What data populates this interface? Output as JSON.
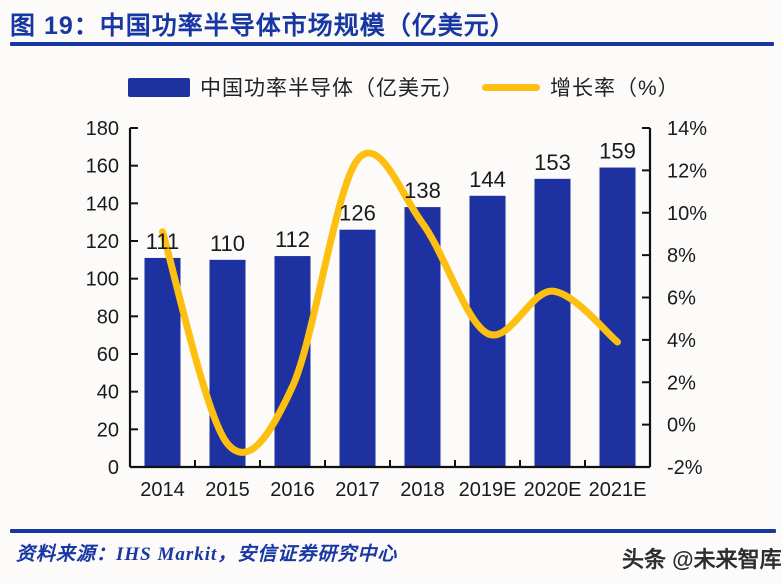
{
  "page": {
    "background": "#fcfbf9",
    "accent_color": "#1737a3"
  },
  "header": {
    "title": "图 19：中国功率半导体市场规模（亿美元）"
  },
  "legend": {
    "items": [
      {
        "label": "中国功率半导体（亿美元）",
        "swatch": "bar-swatch",
        "color": "#1d31a1"
      },
      {
        "label": "增长率（%）",
        "swatch": "line-swatch",
        "color": "#fdc011"
      }
    ]
  },
  "chart_data": {
    "type": "bar",
    "title": "中国功率半导体市场规模（亿美元）",
    "categories": [
      "2014",
      "2015",
      "2016",
      "2017",
      "2018",
      "2019E",
      "2020E",
      "2021E"
    ],
    "series": [
      {
        "name": "中国功率半导体（亿美元）",
        "type": "bar",
        "axis": "left",
        "color": "#1d31a1",
        "values": [
          111,
          110,
          112,
          126,
          138,
          144,
          153,
          159
        ],
        "data_labels": [
          "111",
          "110",
          "112",
          "126",
          "138",
          "144",
          "153",
          "159"
        ]
      },
      {
        "name": "增长率（%）",
        "type": "line",
        "axis": "right",
        "color": "#fdc011",
        "values": [
          9.1,
          -0.9,
          1.8,
          12.5,
          9.5,
          4.3,
          6.3,
          3.9
        ]
      }
    ],
    "left_axis": {
      "min": 0,
      "max": 180,
      "step": 20,
      "tick_labels": [
        "0",
        "20",
        "40",
        "60",
        "80",
        "100",
        "120",
        "140",
        "160",
        "180"
      ]
    },
    "right_axis": {
      "min": -2,
      "max": 14,
      "step": 2,
      "tick_labels": [
        "-2%",
        "0%",
        "2%",
        "4%",
        "6%",
        "8%",
        "10%",
        "12%",
        "14%"
      ]
    },
    "grid": false,
    "legend_position": "top",
    "axis_color": "#111111",
    "label_color": "#1a1a1a"
  },
  "footer": {
    "source": "资料来源：IHS Markit，安信证券研究中心",
    "watermark": "头条 @未来智库"
  }
}
